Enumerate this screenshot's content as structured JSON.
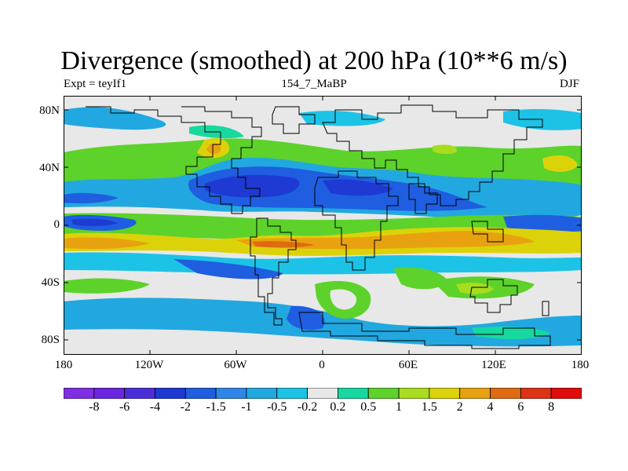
{
  "title": "Divergence (smoothed) at 200 hPa (10**6 m/s)",
  "subtitle_left": "Expt = teyIf1",
  "subtitle_center": "154_7_MaBP",
  "subtitle_right": "DJF",
  "lat_labels": [
    "80N",
    "40N",
    "0",
    "40S",
    "80S"
  ],
  "lon_labels": [
    "180",
    "120W",
    "60W",
    "0",
    "60E",
    "120E",
    "180"
  ],
  "colorbar": {
    "labels": [
      "-8",
      "-6",
      "-4",
      "-2",
      "-1.5",
      "-1",
      "-0.5",
      "-0.2",
      "0.2",
      "0.5",
      "1",
      "1.5",
      "2",
      "4",
      "6",
      "8"
    ],
    "colors": [
      "#7f2ee3",
      "#6a26e0",
      "#4a2fd9",
      "#1e3ad2",
      "#1f5ee0",
      "#2e86e8",
      "#22a8e0",
      "#1cc3e6",
      "#e8e8e8",
      "#17d89e",
      "#5dd22a",
      "#a8dc1e",
      "#dcd20a",
      "#e8a20f",
      "#e06a12",
      "#dc3414",
      "#e00c0c"
    ]
  },
  "colors": {
    "neutral": "#e8e8e8",
    "coast": "#000000"
  }
}
